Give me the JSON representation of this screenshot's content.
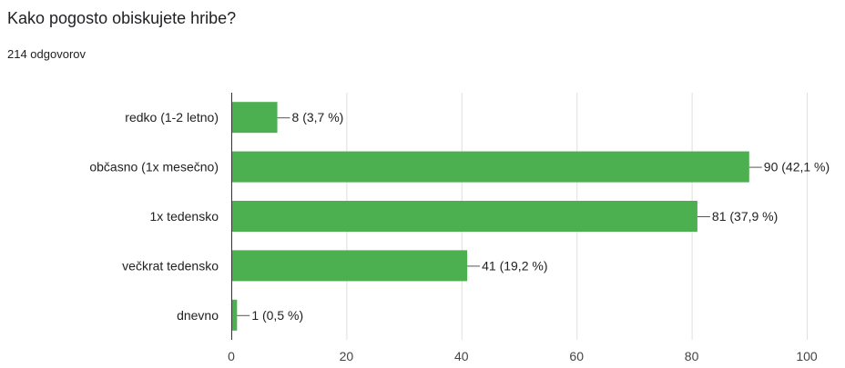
{
  "question": {
    "title": "Kako pogosto obiskujete hribe?",
    "response_count": "214 odgovorov"
  },
  "colors": {
    "bar": "#4caf50",
    "grid": "#e0e0e0",
    "axis": "#333333",
    "text": "#202124"
  },
  "chart_data": {
    "type": "bar",
    "orientation": "horizontal",
    "categories": [
      "redko (1-2 letno)",
      "občasno (1x mesečno)",
      "1x tedensko",
      "večkrat tedensko",
      "dnevno"
    ],
    "values": [
      8,
      90,
      81,
      41,
      1
    ],
    "data_labels": [
      "8 (3,7 %)",
      "90 (42,1 %)",
      "81 (37,9 %)",
      "41 (19,2 %)",
      "1 (0,5 %)"
    ],
    "xlim": [
      0,
      100
    ],
    "xticks": [
      0,
      20,
      40,
      60,
      80,
      100
    ],
    "grid": true
  }
}
